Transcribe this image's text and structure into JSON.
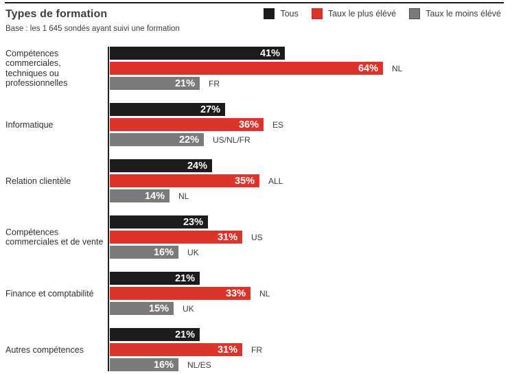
{
  "header": {
    "title": "Types de formation",
    "subtitle": "Base : les 1 645 sondés ayant suivi une formation"
  },
  "legend": [
    {
      "label": "Tous",
      "color": "#1c1c1c",
      "border": "#1c1c1c"
    },
    {
      "label": "Taux le plus élévé",
      "color": "#dc332b",
      "border": "#c52a22"
    },
    {
      "label": "Taux le moins élévé",
      "color": "#7a7a78",
      "border": "#4a4a4a"
    }
  ],
  "chart_data": {
    "type": "bar",
    "orientation": "horizontal",
    "title": "Types de formation",
    "subtitle": "Base : les 1 645 sondés ayant suivi une formation",
    "unit": "%",
    "xlim": [
      0,
      94
    ],
    "grid": false,
    "legend_position": "top-right",
    "series_names": [
      "Tous",
      "Taux le plus élévé",
      "Taux le moins élévé"
    ],
    "series_colors": [
      "#1c1c1c",
      "#dc332b",
      "#7a7a78"
    ],
    "groups": [
      {
        "category": "Compétences\ncommerciales,\ntechniques ou\nprofessionnelles",
        "bars": [
          {
            "series": "Tous",
            "value": 41,
            "label": "41%",
            "annotation": ""
          },
          {
            "series": "Taux le plus élévé",
            "value": 64,
            "label": "64%",
            "annotation": "NL"
          },
          {
            "series": "Taux le moins élévé",
            "value": 21,
            "label": "21%",
            "annotation": "FR"
          }
        ]
      },
      {
        "category": "Informatique",
        "bars": [
          {
            "series": "Tous",
            "value": 27,
            "label": "27%",
            "annotation": ""
          },
          {
            "series": "Taux le plus élévé",
            "value": 36,
            "label": "36%",
            "annotation": "ES"
          },
          {
            "series": "Taux le moins élévé",
            "value": 22,
            "label": "22%",
            "annotation": "US/NL/FR"
          }
        ]
      },
      {
        "category": "Relation clientèle",
        "bars": [
          {
            "series": "Tous",
            "value": 24,
            "label": "24%",
            "annotation": ""
          },
          {
            "series": "Taux le plus élévé",
            "value": 35,
            "label": "35%",
            "annotation": "ALL"
          },
          {
            "series": "Taux le moins élévé",
            "value": 14,
            "label": "14%",
            "annotation": "NL"
          }
        ]
      },
      {
        "category": "Compétences\ncommerciales et de vente",
        "bars": [
          {
            "series": "Tous",
            "value": 23,
            "label": "23%",
            "annotation": ""
          },
          {
            "series": "Taux le plus élévé",
            "value": 31,
            "label": "31%",
            "annotation": "US"
          },
          {
            "series": "Taux le moins élévé",
            "value": 16,
            "label": "16%",
            "annotation": "UK"
          }
        ]
      },
      {
        "category": "Finance et comptabilité",
        "bars": [
          {
            "series": "Tous",
            "value": 21,
            "label": "21%",
            "annotation": ""
          },
          {
            "series": "Taux le plus élévé",
            "value": 33,
            "label": "33%",
            "annotation": "NL"
          },
          {
            "series": "Taux le moins élévé",
            "value": 15,
            "label": "15%",
            "annotation": "UK"
          }
        ]
      },
      {
        "category": "Autres compétences",
        "bars": [
          {
            "series": "Tous",
            "value": 21,
            "label": "21%",
            "annotation": ""
          },
          {
            "series": "Taux le plus élévé",
            "value": 31,
            "label": "31%",
            "annotation": "FR"
          },
          {
            "series": "Taux le moins élévé",
            "value": 16,
            "label": "16%",
            "annotation": "NL/ES"
          }
        ]
      }
    ]
  }
}
